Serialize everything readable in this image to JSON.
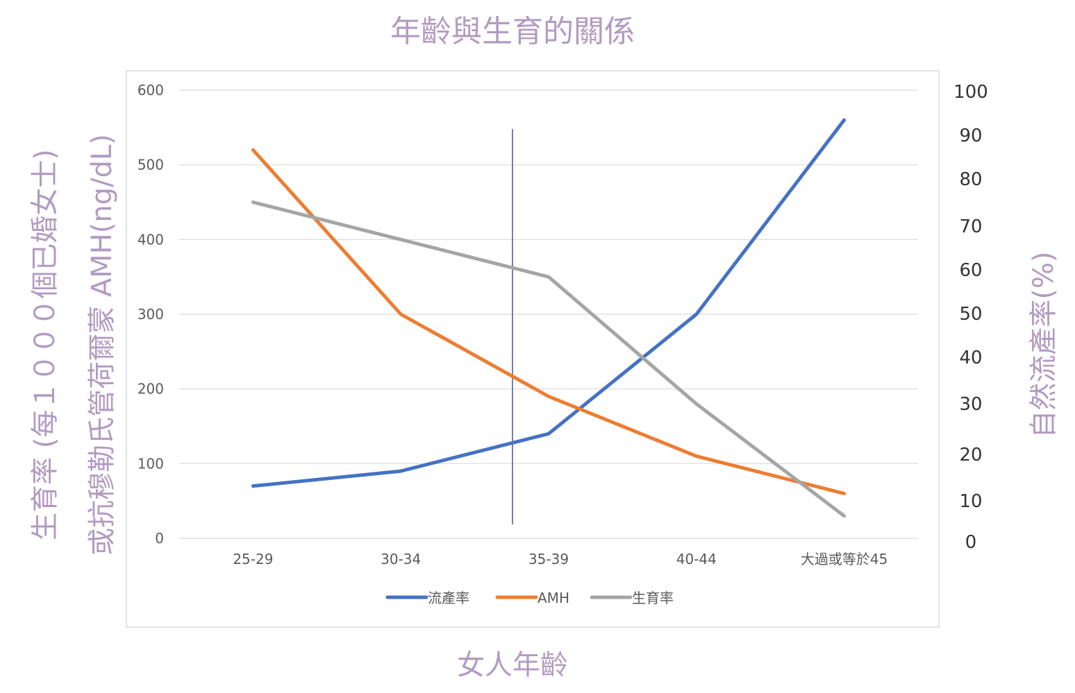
{
  "colors": {
    "title": "#b29bc2",
    "grid": "#d9d9d9",
    "frame": "#d9d9d9",
    "marker_line": "#3f5a96"
  },
  "chart_data": {
    "type": "line",
    "title": "年齡與生育的關係",
    "xlabel": "女人年齡",
    "ylabel_left_line1": "生育率 (每１０００個已婚女士)",
    "ylabel_left_line2": "或抗穆勒氏管荷爾蒙 AMH(ng/dL)",
    "ylabel_right": "自然流產率(%)",
    "categories": [
      "25-29",
      "30-34",
      "35-39",
      "40-44",
      "大過或等於45"
    ],
    "y_left": {
      "min": 0,
      "max": 600,
      "ticks": [
        0,
        100,
        200,
        300,
        400,
        500,
        600
      ]
    },
    "y_right": {
      "ticks": [
        "100",
        "90",
        "80",
        "70",
        "60",
        "50",
        "40",
        "30",
        "20",
        "10",
        "0"
      ]
    },
    "grid": true,
    "legend_position": "bottom",
    "vertical_marker_between": [
      "30-34",
      "35-39"
    ],
    "series": [
      {
        "name": "流產率",
        "color": "#4472c4",
        "values": [
          70,
          90,
          140,
          300,
          560
        ]
      },
      {
        "name": "AMH",
        "color": "#ed7d31",
        "values": [
          520,
          300,
          190,
          110,
          60
        ]
      },
      {
        "name": "生育率",
        "color": "#a5a5a5",
        "values": [
          450,
          400,
          350,
          180,
          30
        ]
      }
    ]
  }
}
